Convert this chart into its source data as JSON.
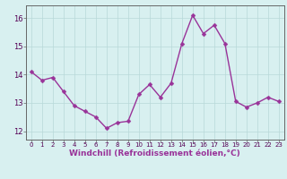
{
  "x": [
    0,
    1,
    2,
    3,
    4,
    5,
    6,
    7,
    8,
    9,
    10,
    11,
    12,
    13,
    14,
    15,
    16,
    17,
    18,
    19,
    20,
    21,
    22,
    23
  ],
  "y": [
    14.1,
    13.8,
    13.9,
    13.4,
    12.9,
    12.7,
    12.5,
    12.1,
    12.3,
    12.35,
    13.3,
    13.65,
    13.2,
    13.7,
    15.1,
    16.1,
    15.45,
    15.75,
    15.1,
    13.05,
    12.85,
    13.0,
    13.2,
    13.05
  ],
  "line_color": "#993399",
  "marker": "D",
  "marker_size": 2.5,
  "linewidth": 1.0,
  "xlabel": "Windchill (Refroidissement éolien,°C)",
  "xlabel_fontsize": 6.5,
  "xlabel_color": "#993399",
  "ylim": [
    11.7,
    16.45
  ],
  "xlim": [
    -0.5,
    23.5
  ],
  "yticks": [
    12,
    13,
    14,
    15,
    16
  ],
  "xticks": [
    0,
    1,
    2,
    3,
    4,
    5,
    6,
    7,
    8,
    9,
    10,
    11,
    12,
    13,
    14,
    15,
    16,
    17,
    18,
    19,
    20,
    21,
    22,
    23
  ],
  "xtick_fontsize": 5.0,
  "ytick_fontsize": 6.0,
  "bg_color": "#d8f0f0",
  "grid_color": "#b8d8d8",
  "grid_linewidth": 0.5
}
